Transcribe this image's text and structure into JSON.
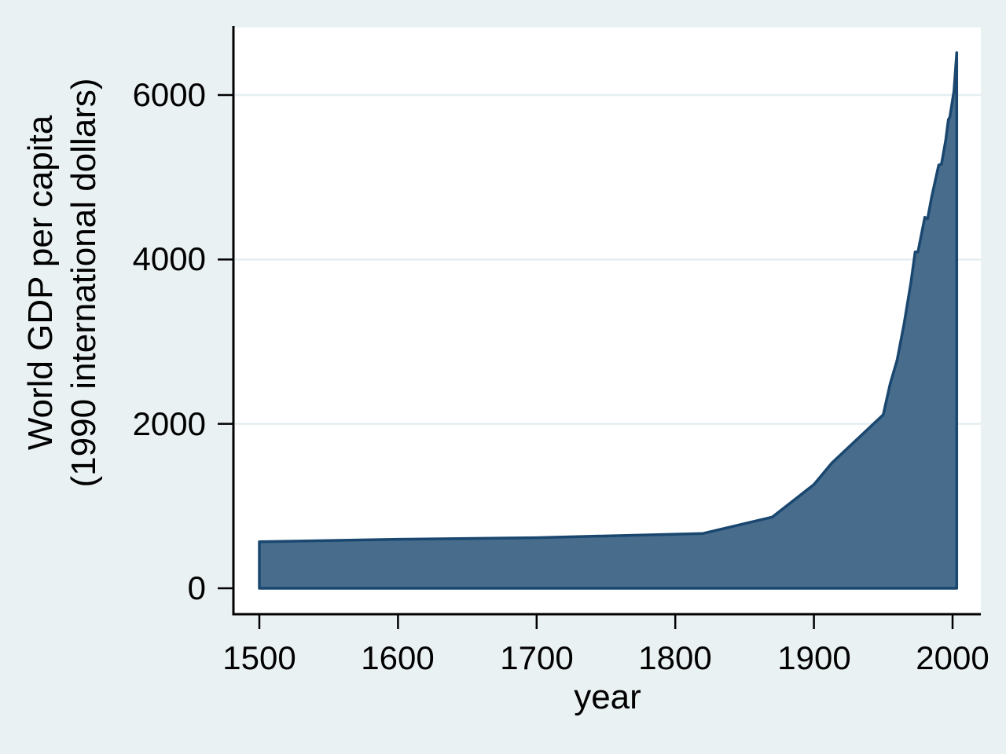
{
  "colors": {
    "background": "#eaf1f3",
    "plot_background": "#ffffff",
    "gridline": "#e4eef1",
    "axis": "#000000",
    "area_fill": "#476c8c",
    "area_stroke": "#1a476f"
  },
  "chart_data": {
    "type": "area",
    "title": "",
    "xlabel": "year",
    "ylabel_line1": "World GDP per capita",
    "ylabel_line2": "(1990 international dollars)",
    "xlim": [
      1482,
      2020
    ],
    "ylim": [
      0,
      6822
    ],
    "grid": "horizontal gridlines at 2000, 4000, 6000; plot background white; figure background light bluish gray",
    "legend": "none",
    "xtick_values": [
      1500,
      1600,
      1700,
      1800,
      1900,
      2000
    ],
    "xtick_labels": [
      "1500",
      "1600",
      "1700",
      "1800",
      "1900",
      "2000"
    ],
    "ytick_values": [
      0,
      2000,
      4000,
      6000
    ],
    "ytick_labels": [
      "0",
      "2000",
      "4000",
      "6000"
    ],
    "series": [
      {
        "name": "World GDP per capita (1990 international dollars)",
        "points": [
          [
            1500,
            566
          ],
          [
            1600,
            596
          ],
          [
            1700,
            615
          ],
          [
            1820,
            667
          ],
          [
            1870,
            867
          ],
          [
            1900,
            1262
          ],
          [
            1913,
            1525
          ],
          [
            1950,
            2111
          ],
          [
            1955,
            2486
          ],
          [
            1960,
            2773
          ],
          [
            1965,
            3216
          ],
          [
            1970,
            3725
          ],
          [
            1973,
            4091
          ],
          [
            1975,
            4089
          ],
          [
            1980,
            4512
          ],
          [
            1982,
            4494
          ],
          [
            1985,
            4764
          ],
          [
            1990,
            5149
          ],
          [
            1992,
            5160
          ],
          [
            1995,
            5444
          ],
          [
            1997,
            5703
          ],
          [
            1998,
            5730
          ],
          [
            2001,
            6049
          ],
          [
            2003,
            6516
          ]
        ]
      }
    ]
  }
}
